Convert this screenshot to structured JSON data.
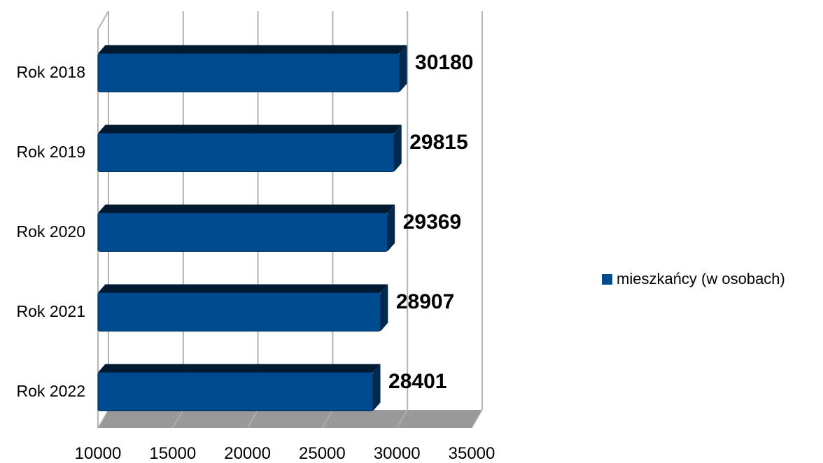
{
  "chart_data": {
    "type": "bar",
    "orientation": "horizontal",
    "style": "3d",
    "categories": [
      "Rok 2018",
      "Rok 2019",
      "Rok 2020",
      "Rok 2021",
      "Rok 2022"
    ],
    "series": [
      {
        "name": "mieszkańcy (w osobach)",
        "values": [
          30180,
          29815,
          29369,
          28907,
          28401
        ],
        "color": "#004a8f"
      }
    ],
    "data_labels": [
      "30180",
      "29815",
      "29369",
      "28907",
      "28401"
    ],
    "xlim": [
      10000,
      35000
    ],
    "xticks": [
      10000,
      15000,
      20000,
      25000,
      30000,
      35000
    ],
    "xtick_labels": [
      "10000",
      "15000",
      "20000",
      "25000",
      "30000",
      "35000"
    ],
    "grid": true,
    "legend": {
      "position": "right",
      "label": "mieszkańcy (w osobach)"
    },
    "title": "",
    "xlabel": "",
    "ylabel": ""
  }
}
